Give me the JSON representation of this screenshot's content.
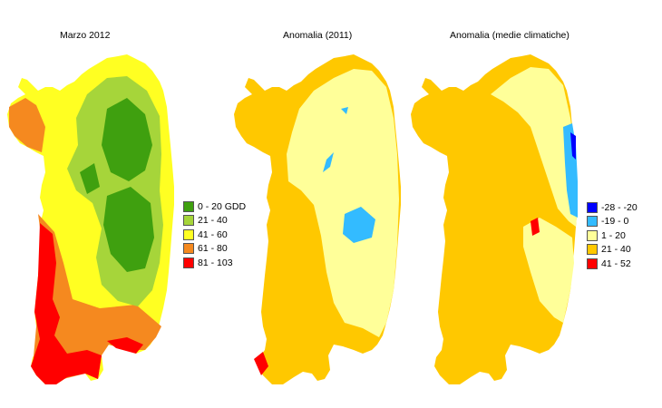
{
  "maps": [
    {
      "title": "Marzo 2012",
      "legend": [
        {
          "label": "0 - 20 GDD",
          "color": "#3fa00f"
        },
        {
          "label": "21 - 40",
          "color": "#a6d53a"
        },
        {
          "label": "41 - 60",
          "color": "#ffff22"
        },
        {
          "label": "61 - 80",
          "color": "#f5891f"
        },
        {
          "label": "81 - 103",
          "color": "#ff0000"
        }
      ]
    },
    {
      "title": "Anomalia (2011)",
      "legend": []
    },
    {
      "title": "Anomalia (medie climatiche)",
      "legend": [
        {
          "label": "-28 - -20",
          "color": "#0000ff"
        },
        {
          "label": "-19 - 0",
          "color": "#33bbff"
        },
        {
          "label": "1 - 20",
          "color": "#ffff99"
        },
        {
          "label": "21 - 40",
          "color": "#ffc800"
        },
        {
          "label": "41 - 52",
          "color": "#ff0000"
        }
      ]
    }
  ]
}
